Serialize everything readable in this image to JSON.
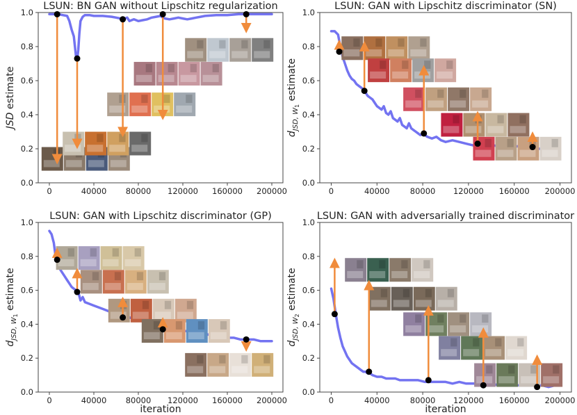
{
  "chart_data": [
    {
      "type": "line",
      "title": "LSUN: BN GAN without Lipschitz regularization",
      "ylabel": "JSD estimate",
      "ylabel_style": "jsd",
      "xlabel": "",
      "xlim": [
        -10000,
        210000
      ],
      "ylim": [
        0.0,
        1.0
      ],
      "xticks": [
        0,
        40000,
        80000,
        120000,
        160000,
        200000
      ],
      "yticks": [
        0.0,
        0.2,
        0.4,
        0.6,
        0.8,
        1.0
      ],
      "series": [
        {
          "x": [
            0,
            4000,
            8000,
            12000,
            16000,
            18000,
            20000,
            21000,
            22000,
            23000,
            24000,
            25000,
            26000,
            27000,
            28000,
            30000,
            32000,
            36000,
            40000,
            48000,
            56000,
            60000,
            64000,
            66000,
            68000,
            70000,
            72000,
            76000,
            80000,
            84000,
            88000,
            92000,
            96000,
            100000,
            102000,
            104000,
            108000,
            112000,
            116000,
            120000,
            124000,
            128000,
            132000,
            136000,
            140000,
            150000,
            160000,
            170000,
            180000,
            190000,
            200000
          ],
          "y": [
            0.99,
            0.99,
            0.99,
            0.985,
            0.98,
            0.95,
            0.9,
            0.88,
            0.86,
            0.8,
            0.74,
            0.72,
            0.78,
            0.88,
            0.95,
            0.975,
            0.985,
            0.985,
            0.98,
            0.98,
            0.975,
            0.97,
            0.965,
            0.96,
            0.965,
            0.97,
            0.95,
            0.96,
            0.95,
            0.955,
            0.96,
            0.97,
            0.975,
            0.98,
            0.97,
            0.965,
            0.96,
            0.965,
            0.97,
            0.965,
            0.96,
            0.965,
            0.97,
            0.975,
            0.98,
            0.985,
            0.985,
            0.99,
            0.99,
            0.99,
            0.99
          ]
        }
      ],
      "points": [
        {
          "x": 7000,
          "y": 0.99,
          "ty": 0.11
        },
        {
          "x": 25000,
          "y": 0.73,
          "ty": 0.2
        },
        {
          "x": 66000,
          "y": 0.96,
          "ty": 0.27
        },
        {
          "x": 102000,
          "y": 0.99,
          "ty": 0.37
        },
        {
          "x": 177000,
          "y": 0.99,
          "ty": 0.88
        }
      ],
      "strips": [
        {
          "x0": -7000,
          "y0": 0.21,
          "tones": [
            "#6b5a4a",
            "#8a7a6a",
            "#4a5a7a",
            "#9a8a7a"
          ]
        },
        {
          "x0": 12000,
          "y0": 0.3,
          "tones": [
            "#c8c0b0",
            "#c87030",
            "#d0a060",
            "#6a6a6a"
          ]
        },
        {
          "x0": 52000,
          "y0": 0.53,
          "tones": [
            "#b0a090",
            "#e07050",
            "#e0c060",
            "#a0a8b0"
          ]
        },
        {
          "x0": 76000,
          "y0": 0.71,
          "tones": [
            "#a87880",
            "#b88890",
            "#c898a0",
            "#b89098"
          ]
        },
        {
          "x0": 122000,
          "y0": 0.85,
          "tones": [
            "#a09080",
            "#c0c8d0",
            "#a8a098",
            "#808080"
          ]
        }
      ]
    },
    {
      "type": "line",
      "title": "LSUN: GAN with Lipschitz discriminator (SN)",
      "ylabel": "d",
      "ylabel_sub": "JSD, W",
      "ylabel_subsub": "1",
      "ylabel_suffix": " estimate",
      "ylabel_style": "d",
      "xlabel": "",
      "xlim": [
        -10000,
        210000
      ],
      "ylim": [
        0.0,
        1.0
      ],
      "xticks": [
        0,
        40000,
        80000,
        120000,
        160000,
        200000
      ],
      "yticks": [
        0.0,
        0.2,
        0.4,
        0.6,
        0.8,
        1.0
      ],
      "series": [
        {
          "x": [
            0,
            3000,
            6000,
            8000,
            10000,
            12000,
            14000,
            16000,
            18000,
            20000,
            22000,
            24000,
            26000,
            28000,
            30000,
            32000,
            34000,
            36000,
            38000,
            40000,
            42000,
            44000,
            46000,
            48000,
            50000,
            52000,
            54000,
            56000,
            58000,
            60000,
            62000,
            64000,
            66000,
            68000,
            70000,
            72000,
            74000,
            76000,
            78000,
            80000,
            84000,
            88000,
            92000,
            96000,
            100000,
            106000,
            112000,
            118000,
            124000,
            130000,
            136000,
            142000,
            148000,
            154000,
            160000,
            166000,
            172000,
            178000,
            184000,
            190000,
            196000,
            200000
          ],
          "y": [
            0.89,
            0.89,
            0.87,
            0.8,
            0.74,
            0.7,
            0.66,
            0.63,
            0.61,
            0.6,
            0.58,
            0.57,
            0.56,
            0.55,
            0.53,
            0.51,
            0.5,
            0.49,
            0.47,
            0.45,
            0.44,
            0.43,
            0.45,
            0.41,
            0.4,
            0.42,
            0.38,
            0.37,
            0.36,
            0.38,
            0.34,
            0.33,
            0.32,
            0.35,
            0.32,
            0.31,
            0.3,
            0.29,
            0.28,
            0.29,
            0.27,
            0.26,
            0.27,
            0.25,
            0.24,
            0.25,
            0.24,
            0.23,
            0.22,
            0.22,
            0.23,
            0.22,
            0.21,
            0.22,
            0.21,
            0.22,
            0.21,
            0.2,
            0.2,
            0.2,
            0.2,
            0.2
          ]
        }
      ],
      "points": [
        {
          "x": 7000,
          "y": 0.77,
          "ty": 0.84
        },
        {
          "x": 29000,
          "y": 0.54,
          "ty": 0.83
        },
        {
          "x": 81000,
          "y": 0.29,
          "ty": 0.69
        },
        {
          "x": 128000,
          "y": 0.23,
          "ty": 0.42
        },
        {
          "x": 176000,
          "y": 0.21,
          "ty": 0.3
        }
      ],
      "strips": [
        {
          "x0": 9000,
          "y0": 0.86,
          "tones": [
            "#8a7060",
            "#b07040",
            "#c09060",
            "#b0a090"
          ]
        },
        {
          "x0": 32000,
          "y0": 0.73,
          "tones": [
            "#c04040",
            "#d08060",
            "#a0a0a0",
            "#d0a8a0"
          ]
        },
        {
          "x0": 63000,
          "y0": 0.56,
          "tones": [
            "#d05060",
            "#c0a080",
            "#907868",
            "#c8a890"
          ]
        },
        {
          "x0": 96000,
          "y0": 0.41,
          "tones": [
            "#c02040",
            "#b09070",
            "#c8b8a0",
            "#907060"
          ]
        },
        {
          "x0": 124000,
          "y0": 0.27,
          "tones": [
            "#d04050",
            "#b8a088",
            "#c8a080",
            "#d8d0c8"
          ]
        }
      ]
    },
    {
      "type": "line",
      "title": "LSUN: GAN with Lipschitz discriminator (GP)",
      "ylabel": "d",
      "ylabel_sub": "JSD, W",
      "ylabel_subsub": "1",
      "ylabel_suffix": " estimate",
      "ylabel_style": "d",
      "xlabel": "iteration",
      "xlim": [
        -10000,
        210000
      ],
      "ylim": [
        0.0,
        1.0
      ],
      "xticks": [
        0,
        40000,
        80000,
        120000,
        160000,
        200000
      ],
      "yticks": [
        0.0,
        0.2,
        0.4,
        0.6,
        0.8,
        1.0
      ],
      "series": [
        {
          "x": [
            0,
            2000,
            4000,
            6000,
            8000,
            10000,
            12000,
            14000,
            16000,
            18000,
            20000,
            22000,
            24000,
            26000,
            28000,
            30000,
            32000,
            36000,
            40000,
            44000,
            48000,
            52000,
            56000,
            60000,
            64000,
            68000,
            72000,
            76000,
            80000,
            84000,
            88000,
            92000,
            96000,
            100000,
            106000,
            112000,
            118000,
            124000,
            130000,
            136000,
            142000,
            148000,
            154000,
            160000,
            166000,
            172000,
            178000,
            184000,
            190000,
            196000,
            200000
          ],
          "y": [
            0.95,
            0.93,
            0.88,
            0.78,
            0.75,
            0.72,
            0.7,
            0.68,
            0.66,
            0.64,
            0.62,
            0.61,
            0.6,
            0.59,
            0.54,
            0.56,
            0.53,
            0.52,
            0.51,
            0.5,
            0.49,
            0.48,
            0.47,
            0.46,
            0.45,
            0.44,
            0.44,
            0.43,
            0.43,
            0.42,
            0.41,
            0.4,
            0.4,
            0.38,
            0.38,
            0.37,
            0.36,
            0.36,
            0.35,
            0.34,
            0.34,
            0.33,
            0.33,
            0.32,
            0.32,
            0.31,
            0.31,
            0.31,
            0.3,
            0.3,
            0.3
          ]
        }
      ],
      "points": [
        {
          "x": 7000,
          "y": 0.78,
          "ty": 0.85
        },
        {
          "x": 25000,
          "y": 0.59,
          "ty": 0.73
        },
        {
          "x": 66000,
          "y": 0.44,
          "ty": 0.56
        },
        {
          "x": 102000,
          "y": 0.37,
          "ty": 0.44
        },
        {
          "x": 177000,
          "y": 0.31,
          "ty": 0.24
        }
      ],
      "strips": [
        {
          "x0": 6000,
          "y0": 0.86,
          "tones": [
            "#b0a898",
            "#a8a0c0",
            "#d0c098",
            "#d8c8a8"
          ]
        },
        {
          "x0": 28000,
          "y0": 0.72,
          "tones": [
            "#a89080",
            "#c87050",
            "#d8b080",
            "#c8c0b0"
          ]
        },
        {
          "x0": 53000,
          "y0": 0.55,
          "tones": [
            "#b09880",
            "#c06040",
            "#d8c8b8",
            "#d0a890"
          ]
        },
        {
          "x0": 83000,
          "y0": 0.43,
          "tones": [
            "#807060",
            "#d89870",
            "#6090c0",
            "#d8c8b8"
          ]
        },
        {
          "x0": 122000,
          "y0": 0.23,
          "tones": [
            "#8a7060",
            "#c8a888",
            "#e8e0d8",
            "#d0b078"
          ]
        }
      ]
    },
    {
      "type": "line",
      "title": "LSUN: GAN with adversarially trained discriminator",
      "ylabel": "d",
      "ylabel_sub": "JSD, W",
      "ylabel_subsub": "2",
      "ylabel_suffix": " estimate",
      "ylabel_style": "d",
      "xlabel": "iteration",
      "xlim": [
        -10000,
        210000
      ],
      "ylim": [
        0.0,
        1.0
      ],
      "xticks": [
        0,
        40000,
        80000,
        120000,
        160000,
        200000
      ],
      "yticks": [
        0.0,
        0.2,
        0.4,
        0.6,
        0.8,
        1.0
      ],
      "series": [
        {
          "x": [
            0,
            2000,
            4000,
            6000,
            8000,
            10000,
            12000,
            14000,
            16000,
            18000,
            20000,
            22000,
            24000,
            26000,
            28000,
            30000,
            32000,
            34000,
            36000,
            40000,
            44000,
            48000,
            52000,
            56000,
            60000,
            64000,
            70000,
            76000,
            82000,
            88000,
            94000,
            100000,
            106000,
            112000,
            118000,
            124000,
            130000,
            136000,
            142000,
            148000,
            154000,
            160000,
            166000,
            172000,
            178000,
            184000,
            190000,
            196000,
            200000
          ],
          "y": [
            0.61,
            0.55,
            0.46,
            0.38,
            0.32,
            0.27,
            0.24,
            0.21,
            0.19,
            0.17,
            0.16,
            0.15,
            0.14,
            0.13,
            0.12,
            0.12,
            0.11,
            0.11,
            0.1,
            0.09,
            0.09,
            0.08,
            0.08,
            0.08,
            0.07,
            0.07,
            0.07,
            0.07,
            0.06,
            0.06,
            0.06,
            0.06,
            0.05,
            0.06,
            0.05,
            0.05,
            0.05,
            0.05,
            0.04,
            0.05,
            0.04,
            0.04,
            0.04,
            0.04,
            0.04,
            0.04,
            0.03,
            0.04,
            0.04
          ]
        }
      ],
      "points": [
        {
          "x": 3000,
          "y": 0.46,
          "ty": 0.79
        },
        {
          "x": 33000,
          "y": 0.12,
          "ty": 0.66
        },
        {
          "x": 85000,
          "y": 0.07,
          "ty": 0.51
        },
        {
          "x": 133000,
          "y": 0.04,
          "ty": 0.38
        },
        {
          "x": 180000,
          "y": 0.03,
          "ty": 0.22
        }
      ],
      "strips": [
        {
          "x0": 12000,
          "y0": 0.79,
          "tones": [
            "#8a8090",
            "#3a6050",
            "#8a7a6a",
            "#d0c8c0"
          ]
        },
        {
          "x0": 33000,
          "y0": 0.62,
          "tones": [
            "#807060",
            "#686058",
            "#7a6a5a",
            "#b8b0a8"
          ]
        },
        {
          "x0": 63000,
          "y0": 0.47,
          "tones": [
            "#9080a0",
            "#708060",
            "#a09080",
            "#b8b8c0"
          ]
        },
        {
          "x0": 94000,
          "y0": 0.33,
          "tones": [
            "#8080a0",
            "#607858",
            "#a89078",
            "#e0d8d0"
          ]
        },
        {
          "x0": 125000,
          "y0": 0.17,
          "tones": [
            "#a08898",
            "#6a7a5a",
            "#c8c0b8",
            "#a07068"
          ]
        }
      ]
    }
  ]
}
